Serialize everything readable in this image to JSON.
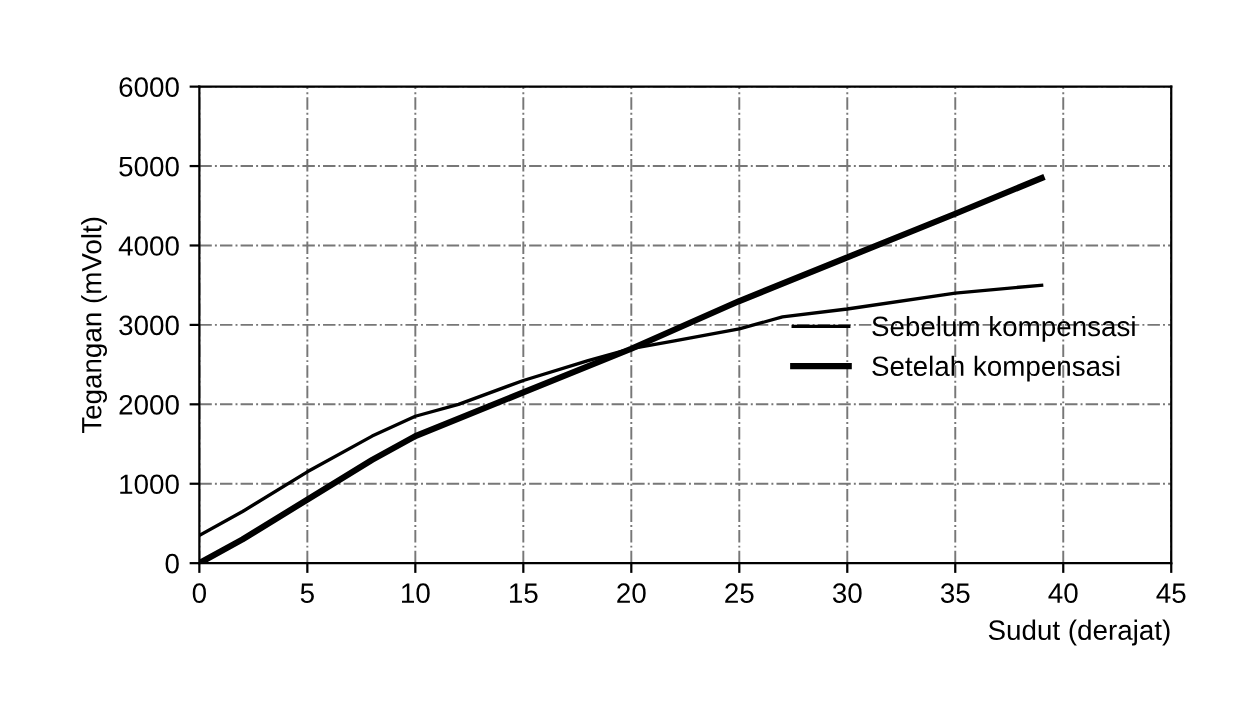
{
  "chart_data": {
    "type": "line",
    "xlabel": "Sudut (derajat)",
    "ylabel": "Tegangan (mVolt)",
    "xlim": [
      0,
      45
    ],
    "xticks": [
      0,
      5,
      10,
      15,
      20,
      25,
      30,
      35,
      40,
      45
    ],
    "ylim": [
      0,
      6000
    ],
    "yticks": [
      0,
      1000,
      2000,
      3000,
      4000,
      5000,
      6000
    ],
    "grid": true,
    "legend": "right",
    "line_style": "solid",
    "marker": "none",
    "series": [
      {
        "name": "Sebelum kompensasi",
        "color": "#000000",
        "x": [
          0,
          2,
          5,
          8,
          10,
          12,
          15,
          18,
          20,
          22,
          25,
          27,
          30,
          35,
          39
        ],
        "values": [
          350,
          650,
          1150,
          1600,
          1850,
          2000,
          2300,
          2550,
          2700,
          2800,
          2950,
          3100,
          3200,
          3400,
          3500
        ]
      },
      {
        "name": "Setelah kompensasi",
        "color": "#000000",
        "x": [
          0,
          2,
          5,
          8,
          10,
          15,
          20,
          25,
          30,
          35,
          39
        ],
        "values": [
          0,
          300,
          800,
          1300,
          1600,
          2150,
          2700,
          3300,
          3850,
          4400,
          4850
        ]
      }
    ]
  }
}
